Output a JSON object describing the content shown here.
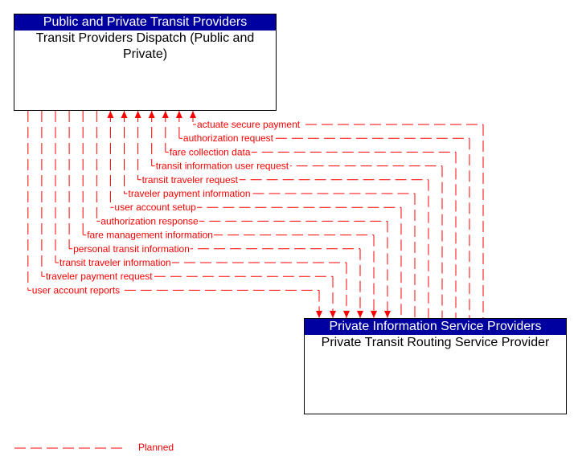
{
  "boxes": {
    "left": {
      "header": "Public and Private Transit Providers",
      "title": "Transit Providers Dispatch (Public and Private)"
    },
    "right": {
      "header": "Private Information Service Providers",
      "title": "Private Transit Routing Service Provider"
    }
  },
  "flows": [
    {
      "label": "actuate secure payment",
      "direction": "to-left"
    },
    {
      "label": "authorization request",
      "direction": "to-left"
    },
    {
      "label": "fare collection data",
      "direction": "to-left"
    },
    {
      "label": "transit information user request",
      "direction": "to-left"
    },
    {
      "label": "transit traveler request",
      "direction": "to-left"
    },
    {
      "label": "traveler payment information",
      "direction": "to-left"
    },
    {
      "label": "user account setup",
      "direction": "to-left"
    },
    {
      "label": "authorization response",
      "direction": "to-right"
    },
    {
      "label": "fare management information",
      "direction": "to-right"
    },
    {
      "label": "personal transit information",
      "direction": "to-right"
    },
    {
      "label": "transit traveler information",
      "direction": "to-right"
    },
    {
      "label": "traveler payment request",
      "direction": "to-right"
    },
    {
      "label": "user account reports",
      "direction": "to-right"
    }
  ],
  "legend": {
    "label": "Planned",
    "color": "#ff0000"
  }
}
